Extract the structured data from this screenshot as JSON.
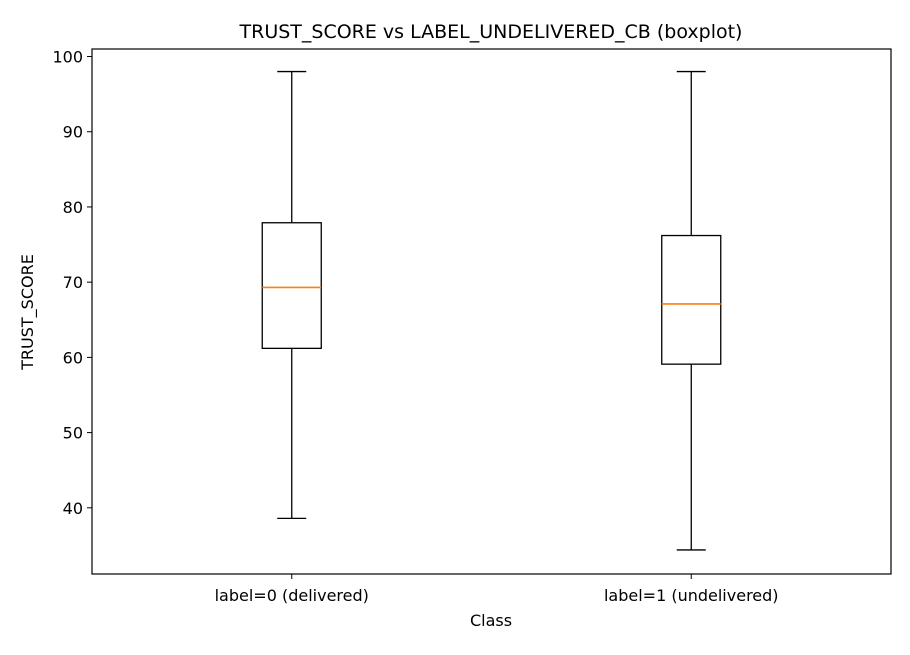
{
  "chart_data": {
    "type": "boxplot",
    "title": "TRUST_SCORE vs LABEL_UNDELIVERED_CB (boxplot)",
    "xlabel": "Class",
    "ylabel": "TRUST_SCORE",
    "categories": [
      "label=0 (delivered)",
      "label=1 (undelivered)"
    ],
    "boxes": [
      {
        "category": "label=0 (delivered)",
        "whisker_low": 38.6,
        "q1": 61.2,
        "median": 69.3,
        "q3": 77.9,
        "whisker_high": 98.0
      },
      {
        "category": "label=1 (undelivered)",
        "whisker_low": 34.4,
        "q1": 59.1,
        "median": 67.1,
        "q3": 76.2,
        "whisker_high": 98.0
      }
    ],
    "ylim": [
      31.2,
      101.0
    ],
    "yticks": [
      40,
      50,
      60,
      70,
      80,
      90,
      100
    ],
    "grid": false,
    "legend": "none",
    "colors": {
      "box": "#000000",
      "median": "#ff7f0e",
      "axes": "#000000"
    }
  }
}
